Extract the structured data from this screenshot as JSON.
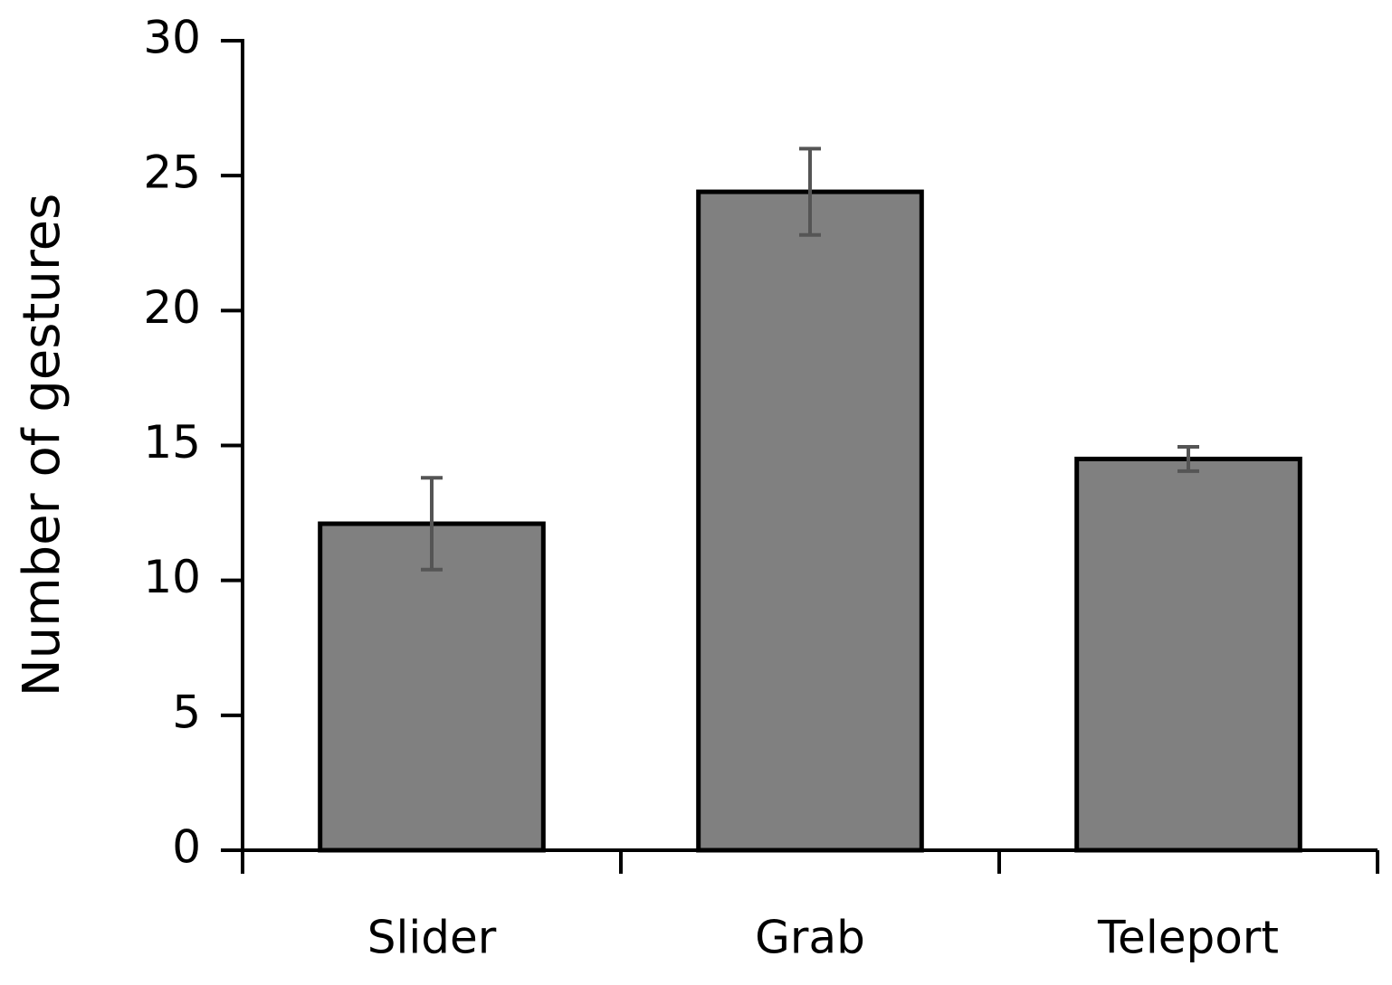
{
  "chart_data": {
    "type": "bar",
    "y_label": "Number of gestures",
    "categories": [
      "Slider",
      "Grab",
      "Teleport"
    ],
    "values": [
      12.1,
      24.4,
      14.5
    ],
    "errors": [
      1.7,
      1.6,
      0.45
    ],
    "color": "#808080",
    "error_color": "#555555",
    "ylim": [
      0,
      30
    ],
    "yticks": [
      0,
      5,
      10,
      15,
      20,
      25,
      30
    ],
    "grid": false
  }
}
